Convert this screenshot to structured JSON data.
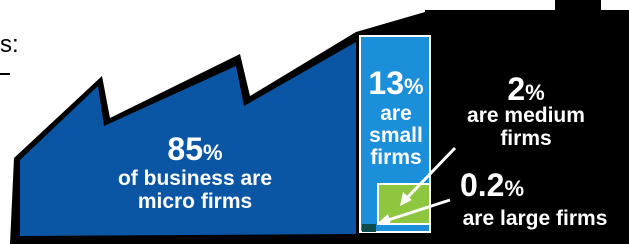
{
  "corner_text": "s:",
  "segments": [
    {
      "value": 85,
      "unit": "%",
      "lines": [
        "of business are",
        "micro firms"
      ]
    },
    {
      "value": 13,
      "unit": "%",
      "lines": [
        "are",
        "small",
        "firms"
      ]
    },
    {
      "value": 2,
      "unit": "%",
      "lines": [
        "are medium",
        "firms"
      ]
    },
    {
      "value": 0.2,
      "unit": "%",
      "lines": [
        "are large firms"
      ]
    }
  ]
}
